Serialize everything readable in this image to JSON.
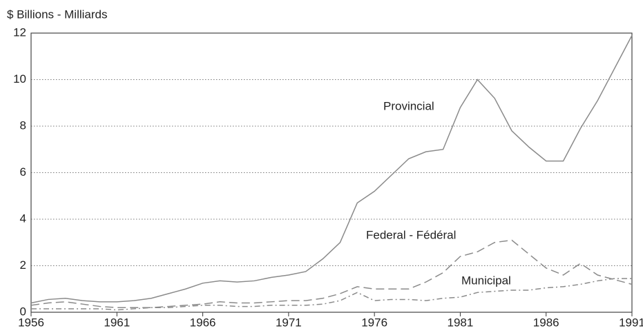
{
  "chart_data": {
    "type": "line",
    "y_label": "$ Billions - Milliards",
    "x": [
      1956,
      1957,
      1958,
      1959,
      1960,
      1961,
      1962,
      1963,
      1964,
      1965,
      1966,
      1967,
      1968,
      1969,
      1970,
      1971,
      1972,
      1973,
      1974,
      1975,
      1976,
      1977,
      1978,
      1979,
      1980,
      1981,
      1982,
      1983,
      1984,
      1985,
      1986,
      1987,
      1988,
      1989,
      1990,
      1991
    ],
    "series": [
      {
        "name": "Provincial",
        "color": "#8a8a8a",
        "style": "solid",
        "values": [
          0.4,
          0.55,
          0.6,
          0.5,
          0.45,
          0.45,
          0.5,
          0.6,
          0.8,
          1.0,
          1.25,
          1.35,
          1.3,
          1.35,
          1.5,
          1.6,
          1.75,
          2.3,
          3.0,
          4.7,
          5.2,
          5.9,
          6.6,
          6.9,
          7.0,
          8.8,
          10.0,
          9.2,
          7.8,
          7.1,
          6.5,
          6.5,
          7.9,
          9.1,
          10.5,
          11.9
        ]
      },
      {
        "name": "Federal - Fédéral",
        "color": "#8a8a8a",
        "style": "dashed",
        "values": [
          0.3,
          0.4,
          0.45,
          0.35,
          0.25,
          0.2,
          0.2,
          0.2,
          0.25,
          0.3,
          0.35,
          0.45,
          0.4,
          0.4,
          0.45,
          0.5,
          0.5,
          0.6,
          0.8,
          1.1,
          1.0,
          1.0,
          1.0,
          1.3,
          1.7,
          2.4,
          2.6,
          3.0,
          3.1,
          2.5,
          1.9,
          1.6,
          2.1,
          1.6,
          1.4,
          1.2
        ]
      },
      {
        "name": "Municipal",
        "color": "#8a8a8a",
        "style": "dashdot",
        "values": [
          0.15,
          0.15,
          0.15,
          0.15,
          0.15,
          0.1,
          0.15,
          0.2,
          0.2,
          0.25,
          0.3,
          0.3,
          0.25,
          0.25,
          0.3,
          0.3,
          0.3,
          0.35,
          0.5,
          0.85,
          0.5,
          0.55,
          0.55,
          0.5,
          0.6,
          0.65,
          0.85,
          0.9,
          0.95,
          0.95,
          1.05,
          1.1,
          1.2,
          1.35,
          1.45,
          1.45
        ]
      }
    ],
    "xlim": [
      1956,
      1991
    ],
    "xticks": [
      1956,
      1961,
      1966,
      1971,
      1976,
      1981,
      1986,
      1991
    ],
    "ylim": [
      0,
      12
    ],
    "yticks": [
      0,
      2,
      4,
      6,
      8,
      10,
      12
    ],
    "grid": true
  }
}
